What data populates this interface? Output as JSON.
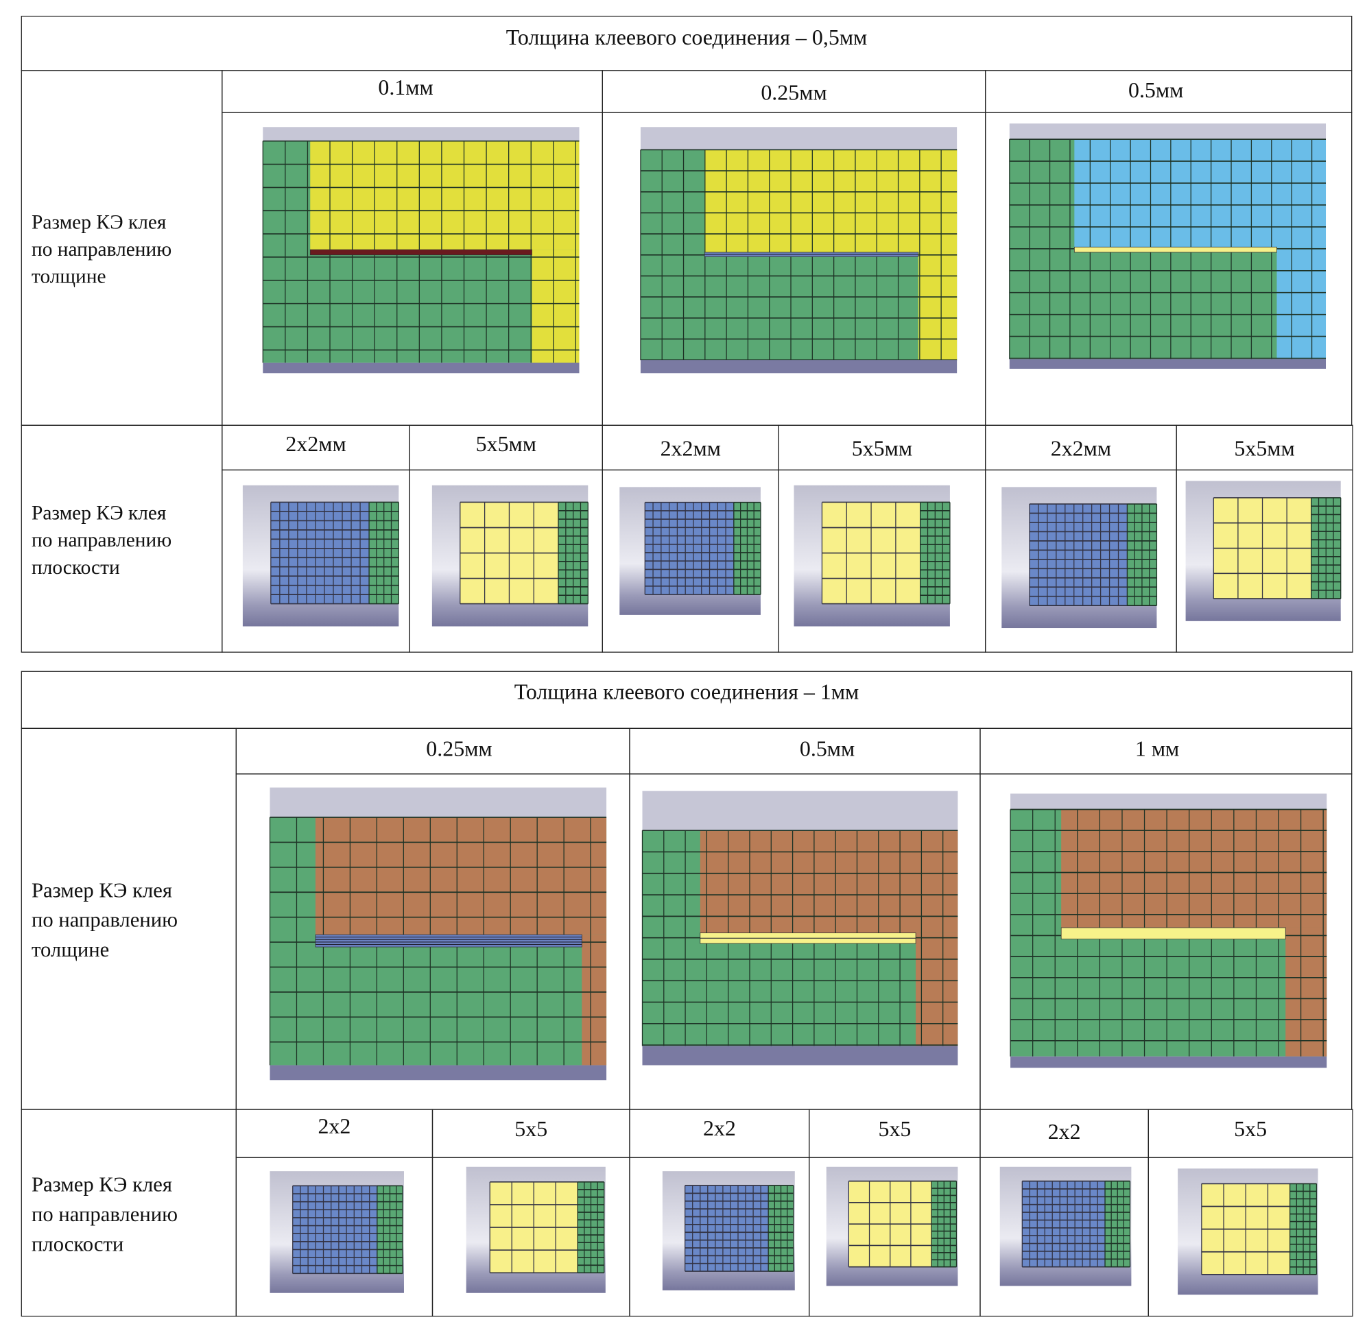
{
  "colors": {
    "substrate": "#5aa874",
    "adhesive_yellow": "#e2df3c",
    "adhesive_blue": "#6abde8",
    "adhesive_brown": "#b87c56",
    "layer_dark_red": "#6a1a1e",
    "layer_blue": "#6a80c0",
    "layer_light_yellow": "#f7f28a",
    "mesh_blue": "#6a88c8",
    "mesh_yellow": "#f8f08a",
    "plate_top": "#c6c6d6",
    "plate_bottom": "#7a7aa2"
  },
  "table1": {
    "title": "Толщина клеевого соединения – 0,5мм",
    "row_thickness_label": "Размер КЭ клея\nпо направлению\nтолщине",
    "row_plane_label": "Размер КЭ клея\nпо направлению\nплоскости",
    "columns": [
      "0.1мм",
      "0.25мм",
      "0.5мм"
    ],
    "subcolumns": [
      "2x2мм",
      "5x5мм",
      "2x2мм",
      "5x5мм",
      "2x2мм",
      "5x5мм"
    ]
  },
  "table2": {
    "title": "Толщина клеевого соединения – 1мм",
    "row_thickness_label": "Размер КЭ клея\nпо направлению\nтолщине",
    "row_plane_label": "Размер КЭ клея\nпо направлению\nплоскости",
    "columns": [
      "0.25мм",
      "0.5мм",
      "1 мм"
    ],
    "subcolumns": [
      "2x2",
      "5x5",
      "2x2",
      "5x5",
      "2x2",
      "5x5"
    ]
  }
}
